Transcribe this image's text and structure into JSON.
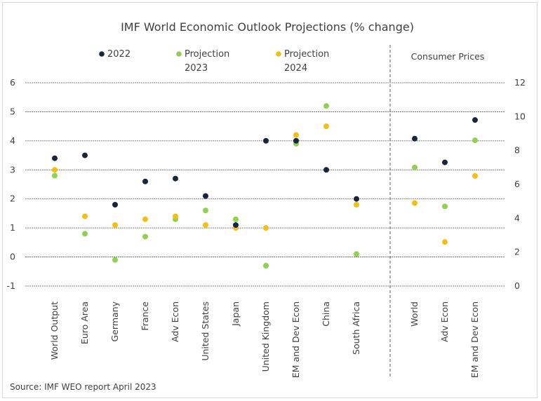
{
  "chart_data": {
    "type": "scatter",
    "title": "IMF World Economic Outlook Projections (% change)",
    "source": "Source:  IMF WEO report April 2023",
    "left_panel": {
      "categories": [
        "World Output",
        "Euro Area",
        "Germany",
        "France",
        "Adv Econ",
        "United States",
        "Japan",
        "United Kingdom",
        "EM and Dev Econ",
        "China",
        "South Africa"
      ],
      "ylim": [
        -1,
        6
      ],
      "yticks": [
        "6",
        "5",
        "4",
        "3",
        "2",
        "1",
        "0",
        "-1"
      ],
      "series": [
        {
          "name": "2022",
          "color": "#17263a",
          "values": [
            3.4,
            3.5,
            1.8,
            2.6,
            2.7,
            2.1,
            1.1,
            4.0,
            4.0,
            3.0,
            2.0
          ]
        },
        {
          "name": "Projection 2023",
          "color": "#92d050",
          "values": [
            2.8,
            0.8,
            -0.1,
            0.7,
            1.3,
            1.6,
            1.3,
            -0.3,
            3.9,
            5.2,
            0.1
          ]
        },
        {
          "name": "Projection 2024",
          "color": "#f2c014",
          "values": [
            3.0,
            1.4,
            1.1,
            1.3,
            1.4,
            1.1,
            1.0,
            1.0,
            4.2,
            4.5,
            1.8
          ]
        }
      ]
    },
    "right_panel": {
      "label": "Consumer Prices",
      "categories": [
        "World",
        "Adv Econ",
        "EM and Dev Econ"
      ],
      "ylim": [
        0,
        12
      ],
      "yticks": [
        "12",
        "10",
        "8",
        "6",
        "4",
        "2",
        "0"
      ],
      "series": [
        {
          "name": "2022",
          "color": "#17263a",
          "values": [
            8.7,
            7.3,
            9.8
          ]
        },
        {
          "name": "Projection 2023",
          "color": "#92d050",
          "values": [
            7.0,
            4.7,
            8.6
          ]
        },
        {
          "name": "Projection 2024",
          "color": "#f2c014",
          "values": [
            4.9,
            2.6,
            6.5
          ]
        }
      ]
    },
    "legend": [
      {
        "line1": "2022",
        "line2": "",
        "color": "#17263a"
      },
      {
        "line1": "Projection",
        "line2": "2023",
        "color": "#92d050"
      },
      {
        "line1": "Projection",
        "line2": "2024",
        "color": "#f2c014"
      }
    ],
    "grid": true,
    "legend_position": "top"
  }
}
